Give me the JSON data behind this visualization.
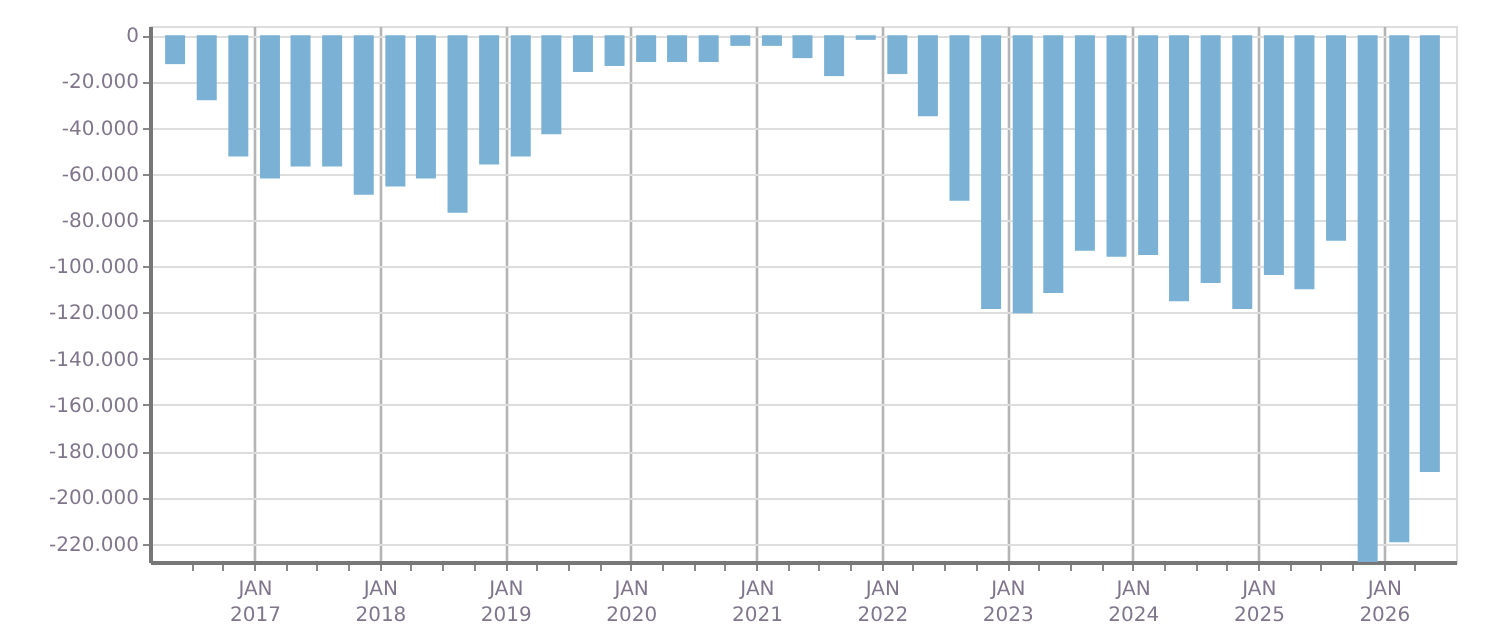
{
  "chart_data": {
    "type": "bar",
    "color": "#7ab1d4",
    "grid": true,
    "x": [
      "2016-05-15",
      "2016-08-15",
      "2016-11-15",
      "2017-02-15",
      "2017-05-15",
      "2017-08-15",
      "2017-11-15",
      "2018-02-15",
      "2018-05-15",
      "2018-08-15",
      "2018-11-15",
      "2019-02-15",
      "2019-05-15",
      "2019-08-15",
      "2019-11-15",
      "2020-02-15",
      "2020-05-15",
      "2020-08-15",
      "2020-11-15",
      "2021-02-15",
      "2021-05-15",
      "2021-08-15",
      "2021-11-15",
      "2022-02-15",
      "2022-05-15",
      "2022-08-15",
      "2022-11-15",
      "2023-02-15",
      "2023-05-15",
      "2023-08-15",
      "2023-11-15",
      "2024-02-15",
      "2024-05-15",
      "2024-08-15",
      "2024-11-15",
      "2025-02-15",
      "2025-05-15",
      "2025-08-15",
      "2025-11-15",
      "2026-02-15",
      "2026-05-15"
    ],
    "values": [
      -12500,
      -28100,
      -52500,
      -62000,
      -56800,
      -56800,
      -69000,
      -65500,
      -62000,
      -76800,
      -56000,
      -52500,
      -42900,
      -15900,
      -13300,
      -11600,
      -11600,
      -11600,
      -4600,
      -4600,
      -9900,
      -17700,
      -2000,
      -16800,
      -35100,
      -71600,
      -118500,
      -120300,
      -111600,
      -93300,
      -95900,
      -95100,
      -115100,
      -107200,
      -118500,
      -103800,
      -109900,
      -89000,
      -228000,
      -219400,
      -189000
    ],
    "xlim": [
      "2016-04-01",
      "2026-07-01"
    ],
    "xticks": [
      {
        "value": "2016-07-01",
        "label": null
      },
      {
        "value": "2016-10-01",
        "label": null
      },
      {
        "value": "2017-01-01",
        "label": "JAN 2017"
      },
      {
        "value": "2017-04-01",
        "label": null
      },
      {
        "value": "2017-07-01",
        "label": null
      },
      {
        "value": "2017-10-01",
        "label": null
      },
      {
        "value": "2018-01-01",
        "label": "JAN 2018"
      },
      {
        "value": "2018-04-01",
        "label": null
      },
      {
        "value": "2018-07-01",
        "label": null
      },
      {
        "value": "2018-10-01",
        "label": null
      },
      {
        "value": "2019-01-01",
        "label": "JAN 2019"
      },
      {
        "value": "2019-04-01",
        "label": null
      },
      {
        "value": "2019-07-01",
        "label": null
      },
      {
        "value": "2019-10-01",
        "label": null
      },
      {
        "value": "2020-01-01",
        "label": "JAN 2020"
      },
      {
        "value": "2020-04-01",
        "label": null
      },
      {
        "value": "2020-07-01",
        "label": null
      },
      {
        "value": "2020-10-01",
        "label": null
      },
      {
        "value": "2021-01-01",
        "label": "JAN 2021"
      },
      {
        "value": "2021-04-01",
        "label": null
      },
      {
        "value": "2021-07-01",
        "label": null
      },
      {
        "value": "2021-10-01",
        "label": null
      },
      {
        "value": "2022-01-01",
        "label": "JAN 2022"
      },
      {
        "value": "2022-04-01",
        "label": null
      },
      {
        "value": "2022-07-01",
        "label": null
      },
      {
        "value": "2022-10-01",
        "label": null
      },
      {
        "value": "2023-01-01",
        "label": "JAN 2023"
      },
      {
        "value": "2023-04-01",
        "label": null
      },
      {
        "value": "2023-07-01",
        "label": null
      },
      {
        "value": "2023-10-01",
        "label": null
      },
      {
        "value": "2024-01-01",
        "label": "JAN 2024"
      },
      {
        "value": "2024-04-01",
        "label": null
      },
      {
        "value": "2024-07-01",
        "label": null
      },
      {
        "value": "2024-10-01",
        "label": null
      },
      {
        "value": "2025-01-01",
        "label": "JAN 2025"
      },
      {
        "value": "2025-04-01",
        "label": null
      },
      {
        "value": "2025-07-01",
        "label": null
      },
      {
        "value": "2025-10-01",
        "label": null
      },
      {
        "value": "2026-01-01",
        "label": "JAN 2026"
      },
      {
        "value": "2026-04-01",
        "label": null
      }
    ],
    "ylim": [
      -228000,
      4000
    ],
    "yticks": [
      0,
      {
        "value": -20000,
        "label": "-20.000"
      },
      {
        "value": -40000,
        "label": "-40.000"
      },
      {
        "value": -60000,
        "label": "-60.000"
      },
      {
        "value": -80000,
        "label": "-80.000"
      },
      {
        "value": -100000,
        "label": "-100.000"
      },
      {
        "value": -120000,
        "label": "-120.000"
      },
      {
        "value": -140000,
        "label": "-140.000"
      },
      {
        "value": -160000,
        "label": "-160.000"
      },
      {
        "value": -180000,
        "label": "-180.000"
      },
      {
        "value": -200000,
        "label": "-200.000"
      },
      {
        "value": -220000,
        "label": "-220.000"
      }
    ]
  }
}
